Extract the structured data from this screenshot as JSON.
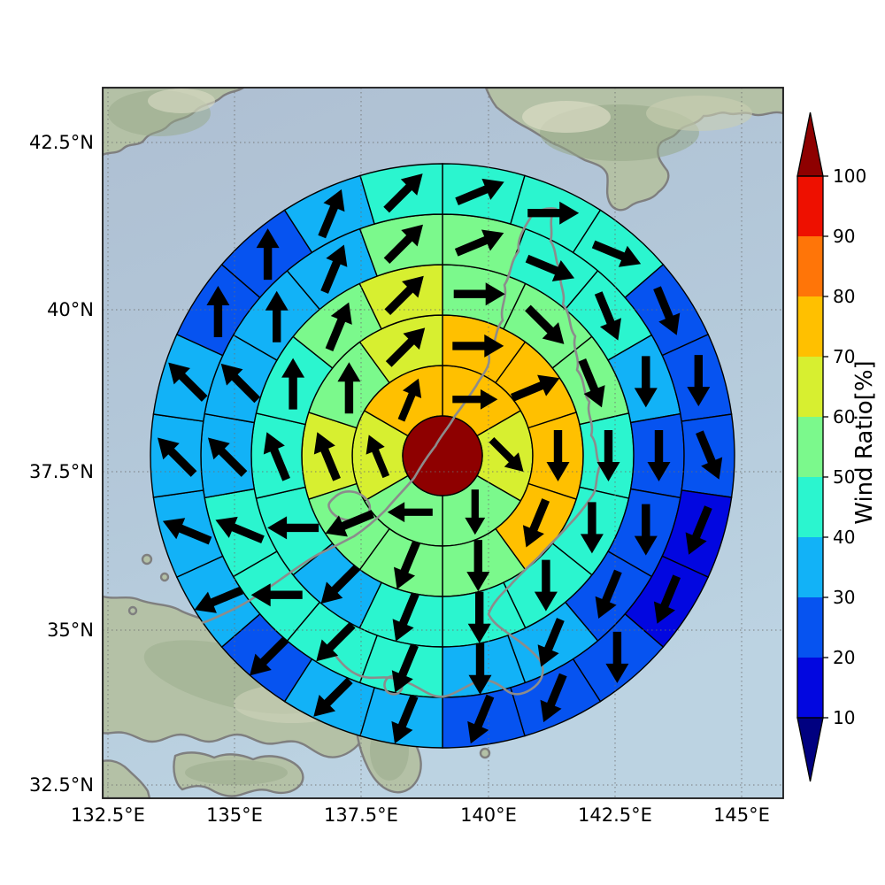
{
  "figure": {
    "background": "#ffffff"
  },
  "map": {
    "x_tick_labels": [
      "132.5°E",
      "135°E",
      "137.5°E",
      "140°E",
      "142.5°E",
      "145°E"
    ],
    "y_tick_labels": [
      "42.5°N",
      "40°N",
      "37.5°N",
      "35°N",
      "32.5°N"
    ],
    "ocean_color_top": "#aebfd2",
    "ocean_color_bottom": "#bcd3e2",
    "land_color": "#b4c1a6",
    "coastline_color": "#8c8c8c",
    "grid_color": "#6f6f6f"
  },
  "colorbar": {
    "label": "Wind Ratio[%]",
    "tick_labels": [
      "100",
      "90",
      "80",
      "70",
      "60",
      "50",
      "40",
      "30",
      "20",
      "10"
    ],
    "tick_values": [
      100,
      90,
      80,
      70,
      60,
      50,
      40,
      30,
      20,
      10
    ],
    "over_color": "#8e0000",
    "under_color": "#000080",
    "segments": [
      {
        "range": "10-20",
        "color": "#0207e0"
      },
      {
        "range": "20-30",
        "color": "#0653f0"
      },
      {
        "range": "30-40",
        "color": "#12b2f7"
      },
      {
        "range": "40-50",
        "color": "#2bf5cf"
      },
      {
        "range": "50-60",
        "color": "#7bf98c"
      },
      {
        "range": "60-70",
        "color": "#d7ef30"
      },
      {
        "range": "70-80",
        "color": "#ffc000"
      },
      {
        "range": "80-90",
        "color": "#ff7508"
      },
      {
        "range": "90-100",
        "color": "#ee1000"
      }
    ]
  },
  "chart_data": {
    "type": "polar_sector_map",
    "title": "",
    "units": "Wind Ratio [%]",
    "center_hole": {
      "value": ">100",
      "color": "#8e0000"
    },
    "arrow_color": "#000000",
    "palette": {
      "10-20": "#0207e0",
      "20-30": "#0653f0",
      "30-40": "#12b2f7",
      "40-50": "#2bf5cf",
      "50-60": "#7bf98c",
      "60-70": "#d7ef30",
      "70-80": "#ffc000",
      "80-90": "#ff7508",
      "90-100": "#ee1000"
    },
    "rings": [
      {
        "ring": 1,
        "sector_count": 6,
        "wind_ratio_bins": [
          "70-80",
          "60-70",
          "50-60",
          "50-60",
          "60-70",
          "70-80"
        ],
        "arrow_deg": [
          90,
          135,
          180,
          270,
          337.5,
          22.5
        ]
      },
      {
        "ring": 2,
        "sector_count": 10,
        "wind_ratio_bins": [
          "70-80",
          "70-80",
          "70-80",
          "70-80",
          "50-60",
          "50-60",
          "50-60",
          "60-70",
          "50-60",
          "60-70"
        ],
        "arrow_deg": [
          90,
          67.5,
          180,
          202.5,
          180,
          202.5,
          247.5,
          337.5,
          0,
          45
        ]
      },
      {
        "ring": 3,
        "sector_count": 14,
        "wind_ratio_bins": [
          "50-60",
          "50-60",
          "50-60",
          "40-50",
          "40-50",
          "40-50",
          "40-50",
          "40-50",
          "30-40",
          "40-50",
          "40-50",
          "40-50",
          "50-60",
          "60-70"
        ],
        "arrow_deg": [
          90,
          135,
          157.5,
          180,
          180,
          180,
          180,
          202.5,
          225,
          270,
          337.5,
          0,
          22.5,
          45
        ]
      },
      {
        "ring": 4,
        "sector_count": 18,
        "wind_ratio_bins": [
          "50-60",
          "40-50",
          "40-50",
          "30-40",
          "20-30",
          "20-30",
          "20-30",
          "30-40",
          "30-40",
          "40-50",
          "40-50",
          "40-50",
          "40-50",
          "30-40",
          "30-40",
          "30-40",
          "30-40",
          "50-60"
        ],
        "arrow_deg": [
          67.5,
          112.5,
          157.5,
          180,
          180,
          180,
          202.5,
          202.5,
          180,
          202.5,
          225,
          270,
          292.5,
          315,
          315,
          0,
          22.5,
          45
        ]
      },
      {
        "ring": 5,
        "sector_count": 22,
        "wind_ratio_bins": [
          "40-50",
          "40-50",
          "40-50",
          "20-30",
          "20-30",
          "20-30",
          "10-20",
          "10-20",
          "20-30",
          "20-30",
          "20-30",
          "30-40",
          "30-40",
          "20-30",
          "30-40",
          "30-40",
          "30-40",
          "30-40",
          "20-30",
          "20-30",
          "30-40",
          "40-50"
        ],
        "arrow_deg": [
          67.5,
          90,
          112.5,
          157.5,
          180,
          157.5,
          202.5,
          202.5,
          180,
          202.5,
          202.5,
          202.5,
          225,
          225,
          247.5,
          292.5,
          315,
          315,
          0,
          0,
          22.5,
          45
        ]
      }
    ],
    "layout_hints": {
      "angle_convention": "degrees clockwise from North",
      "rings_share_boundaries_at": [
        0,
        180
      ],
      "grid": "dotted, drawn above sectors",
      "legend_position": "right vertical colorbar"
    }
  }
}
